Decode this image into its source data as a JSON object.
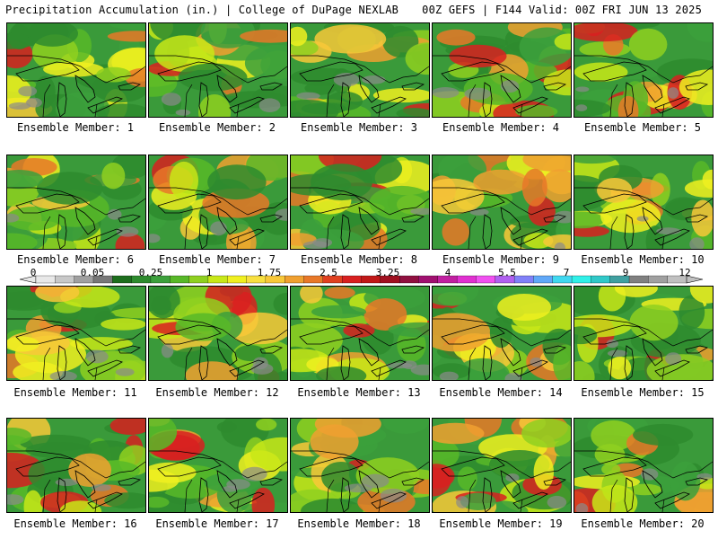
{
  "header": {
    "left_title": "Precipitation Accumulation (in.) | College of DuPage NEXLAB",
    "right_title": "00Z GEFS | F144 Valid: 00Z FRI JUN 13 2025"
  },
  "colorbar": {
    "labels": [
      "0",
      "0.05",
      "0.25",
      "1",
      "1.75",
      "2.5",
      "3.25",
      "4",
      "5.5",
      "7",
      "9",
      "12"
    ],
    "colors": [
      "#e8e8e8",
      "#c8c8c8",
      "#a0a0a0",
      "#787878",
      "#1e6e1e",
      "#2e8b2e",
      "#3ca03c",
      "#58b828",
      "#8fd020",
      "#c8e818",
      "#f0f020",
      "#f8e040",
      "#f8c838",
      "#f0a030",
      "#e87828",
      "#e04020",
      "#d82020",
      "#c01818",
      "#a01020",
      "#901040",
      "#a01070",
      "#c020a0",
      "#e030d0",
      "#f050f0",
      "#b060f0",
      "#8080f8",
      "#60a8f8",
      "#40d8f0",
      "#30f0e8",
      "#30c8c8",
      "#40a0a0",
      "#808080",
      "#a0a0a0",
      "#c0c0c0"
    ]
  },
  "members": [
    {
      "label": "Ensemble Member: 1"
    },
    {
      "label": "Ensemble Member: 2"
    },
    {
      "label": "Ensemble Member: 3"
    },
    {
      "label": "Ensemble Member: 4"
    },
    {
      "label": "Ensemble Member: 5"
    },
    {
      "label": "Ensemble Member: 6"
    },
    {
      "label": "Ensemble Member: 7"
    },
    {
      "label": "Ensemble Member: 8"
    },
    {
      "label": "Ensemble Member: 9"
    },
    {
      "label": "Ensemble Member: 10"
    },
    {
      "label": "Ensemble Member: 11"
    },
    {
      "label": "Ensemble Member: 12"
    },
    {
      "label": "Ensemble Member: 13"
    },
    {
      "label": "Ensemble Member: 14"
    },
    {
      "label": "Ensemble Member: 15"
    },
    {
      "label": "Ensemble Member: 16"
    },
    {
      "label": "Ensemble Member: 17"
    },
    {
      "label": "Ensemble Member: 18"
    },
    {
      "label": "Ensemble Member: 19"
    },
    {
      "label": "Ensemble Member: 20"
    }
  ]
}
